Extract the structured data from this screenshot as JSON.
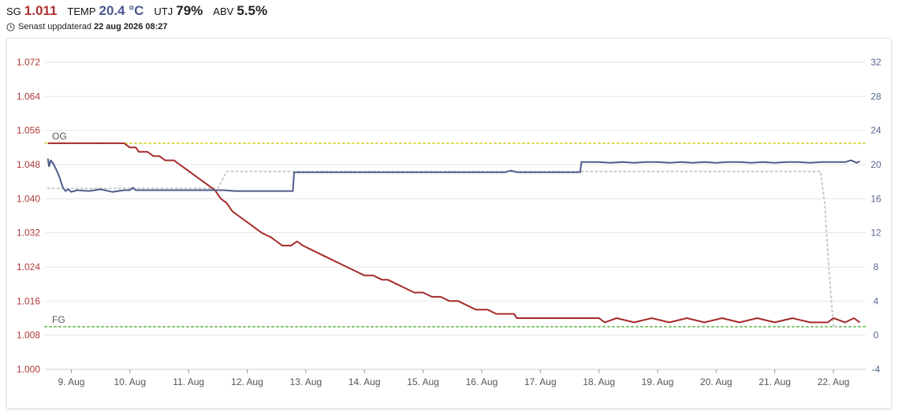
{
  "header": {
    "stats": [
      {
        "label": "SG",
        "value": "1.011",
        "color": "#b03030"
      },
      {
        "label": "TEMP",
        "value": "20.4 °C",
        "color": "#4a5890"
      },
      {
        "label": "UTJ",
        "value": "79%",
        "color": "#111111"
      },
      {
        "label": "ABV",
        "value": "5.5%",
        "color": "#111111"
      }
    ],
    "updated_label": "Senast uppdaterad",
    "updated_value": "22 aug 2026 08:27",
    "clock_icon": "clock-icon"
  },
  "chart_data": {
    "type": "line",
    "colors": {
      "sg": "#a52a2a",
      "temp": "#4f5b8c",
      "target_temp": "#c8c8c8",
      "og": "#d9d94a",
      "fg": "#7cc26a"
    },
    "x_ticks": [
      "9. Aug",
      "10. Aug",
      "11. Aug",
      "12. Aug",
      "13. Aug",
      "14. Aug",
      "15. Aug",
      "16. Aug",
      "17. Aug",
      "18. Aug",
      "19. Aug",
      "20. Aug",
      "21. Aug",
      "22. Aug"
    ],
    "xlim": [
      8.55,
      22.55
    ],
    "y_left": {
      "ticks": [
        "1.000",
        "1.008",
        "1.016",
        "1.024",
        "1.032",
        "1.040",
        "1.048",
        "1.056",
        "1.064",
        "1.072"
      ],
      "range": [
        1.0,
        1.072
      ]
    },
    "y_right": {
      "ticks": [
        "-4",
        "0",
        "4",
        "8",
        "12",
        "16",
        "20",
        "24",
        "28",
        "32"
      ],
      "range": [
        -4,
        32
      ]
    },
    "reference_lines": [
      {
        "label": "OG",
        "value": 1.053,
        "axis": "left"
      },
      {
        "label": "FG",
        "value": 1.01,
        "axis": "left"
      }
    ],
    "grid": true,
    "series": [
      {
        "key": "sg",
        "axis": "left",
        "points": [
          [
            8.6,
            1.053
          ],
          [
            9.9,
            1.053
          ],
          [
            10.0,
            1.052
          ],
          [
            10.1,
            1.052
          ],
          [
            10.15,
            1.051
          ],
          [
            10.3,
            1.051
          ],
          [
            10.4,
            1.05
          ],
          [
            10.5,
            1.05
          ],
          [
            10.6,
            1.049
          ],
          [
            10.75,
            1.049
          ],
          [
            10.85,
            1.048
          ],
          [
            10.95,
            1.047
          ],
          [
            11.05,
            1.046
          ],
          [
            11.15,
            1.045
          ],
          [
            11.25,
            1.044
          ],
          [
            11.35,
            1.043
          ],
          [
            11.45,
            1.042
          ],
          [
            11.55,
            1.04
          ],
          [
            11.65,
            1.039
          ],
          [
            11.75,
            1.037
          ],
          [
            11.85,
            1.036
          ],
          [
            11.95,
            1.035
          ],
          [
            12.05,
            1.034
          ],
          [
            12.15,
            1.033
          ],
          [
            12.25,
            1.032
          ],
          [
            12.4,
            1.031
          ],
          [
            12.5,
            1.03
          ],
          [
            12.6,
            1.029
          ],
          [
            12.75,
            1.029
          ],
          [
            12.85,
            1.03
          ],
          [
            12.95,
            1.029
          ],
          [
            13.1,
            1.028
          ],
          [
            13.25,
            1.027
          ],
          [
            13.4,
            1.026
          ],
          [
            13.55,
            1.025
          ],
          [
            13.7,
            1.024
          ],
          [
            13.85,
            1.023
          ],
          [
            14.0,
            1.022
          ],
          [
            14.15,
            1.022
          ],
          [
            14.3,
            1.021
          ],
          [
            14.4,
            1.021
          ],
          [
            14.55,
            1.02
          ],
          [
            14.7,
            1.019
          ],
          [
            14.85,
            1.018
          ],
          [
            15.0,
            1.018
          ],
          [
            15.15,
            1.017
          ],
          [
            15.3,
            1.017
          ],
          [
            15.45,
            1.016
          ],
          [
            15.6,
            1.016
          ],
          [
            15.75,
            1.015
          ],
          [
            15.9,
            1.014
          ],
          [
            16.1,
            1.014
          ],
          [
            16.25,
            1.013
          ],
          [
            16.4,
            1.013
          ],
          [
            16.55,
            1.013
          ],
          [
            16.6,
            1.012
          ],
          [
            16.75,
            1.012
          ],
          [
            16.9,
            1.012
          ],
          [
            17.0,
            1.012
          ],
          [
            17.2,
            1.012
          ],
          [
            17.5,
            1.012
          ],
          [
            17.75,
            1.012
          ],
          [
            18.0,
            1.012
          ],
          [
            18.1,
            1.011
          ],
          [
            18.3,
            1.012
          ],
          [
            18.6,
            1.011
          ],
          [
            18.9,
            1.012
          ],
          [
            19.2,
            1.011
          ],
          [
            19.5,
            1.012
          ],
          [
            19.8,
            1.011
          ],
          [
            20.1,
            1.012
          ],
          [
            20.4,
            1.011
          ],
          [
            20.7,
            1.012
          ],
          [
            21.0,
            1.011
          ],
          [
            21.3,
            1.012
          ],
          [
            21.6,
            1.011
          ],
          [
            21.9,
            1.011
          ],
          [
            22.0,
            1.012
          ],
          [
            22.2,
            1.011
          ],
          [
            22.35,
            1.012
          ],
          [
            22.45,
            1.011
          ]
        ]
      },
      {
        "key": "temp",
        "axis": "right",
        "points": [
          [
            8.6,
            20.7
          ],
          [
            8.62,
            19.8
          ],
          [
            8.65,
            20.5
          ],
          [
            8.7,
            20.0
          ],
          [
            8.75,
            19.3
          ],
          [
            8.8,
            18.5
          ],
          [
            8.85,
            17.4
          ],
          [
            8.9,
            16.9
          ],
          [
            8.95,
            17.1
          ],
          [
            9.0,
            16.8
          ],
          [
            9.1,
            17.0
          ],
          [
            9.3,
            16.9
          ],
          [
            9.5,
            17.1
          ],
          [
            9.7,
            16.8
          ],
          [
            9.9,
            17.0
          ],
          [
            10.0,
            17.0
          ],
          [
            10.05,
            17.3
          ],
          [
            10.1,
            17.0
          ],
          [
            10.4,
            17.0
          ],
          [
            10.6,
            17.0
          ],
          [
            10.8,
            17.0
          ],
          [
            11.0,
            17.0
          ],
          [
            11.2,
            17.0
          ],
          [
            11.4,
            17.0
          ],
          [
            11.6,
            17.0
          ],
          [
            11.8,
            16.9
          ],
          [
            12.0,
            16.9
          ],
          [
            12.2,
            16.9
          ],
          [
            12.4,
            16.9
          ],
          [
            12.6,
            16.9
          ],
          [
            12.78,
            16.9
          ],
          [
            12.8,
            19.1
          ],
          [
            13.0,
            19.1
          ],
          [
            13.4,
            19.1
          ],
          [
            13.8,
            19.1
          ],
          [
            14.2,
            19.1
          ],
          [
            14.6,
            19.1
          ],
          [
            15.0,
            19.1
          ],
          [
            15.4,
            19.1
          ],
          [
            15.8,
            19.1
          ],
          [
            16.2,
            19.1
          ],
          [
            16.4,
            19.1
          ],
          [
            16.5,
            19.3
          ],
          [
            16.6,
            19.1
          ],
          [
            16.9,
            19.1
          ],
          [
            17.2,
            19.1
          ],
          [
            17.5,
            19.1
          ],
          [
            17.68,
            19.1
          ],
          [
            17.7,
            20.3
          ],
          [
            18.0,
            20.3
          ],
          [
            18.2,
            20.2
          ],
          [
            18.4,
            20.3
          ],
          [
            18.6,
            20.2
          ],
          [
            18.8,
            20.3
          ],
          [
            19.0,
            20.3
          ],
          [
            19.2,
            20.2
          ],
          [
            19.4,
            20.3
          ],
          [
            19.6,
            20.2
          ],
          [
            19.8,
            20.3
          ],
          [
            20.0,
            20.2
          ],
          [
            20.2,
            20.3
          ],
          [
            20.4,
            20.3
          ],
          [
            20.6,
            20.2
          ],
          [
            20.8,
            20.3
          ],
          [
            21.0,
            20.2
          ],
          [
            21.2,
            20.3
          ],
          [
            21.4,
            20.3
          ],
          [
            21.6,
            20.2
          ],
          [
            21.8,
            20.3
          ],
          [
            22.0,
            20.3
          ],
          [
            22.2,
            20.3
          ],
          [
            22.3,
            20.5
          ],
          [
            22.4,
            20.2
          ],
          [
            22.45,
            20.4
          ]
        ]
      },
      {
        "key": "target_temp",
        "axis": "right",
        "dashed": true,
        "points": [
          [
            8.6,
            17.2
          ],
          [
            11.4,
            17.2
          ],
          [
            11.5,
            17.2
          ],
          [
            11.65,
            19.2
          ],
          [
            17.6,
            19.2
          ],
          [
            17.7,
            19.2
          ],
          [
            21.7,
            19.2
          ],
          [
            21.78,
            19.2
          ],
          [
            21.85,
            15.5
          ],
          [
            21.92,
            8.0
          ],
          [
            22.0,
            1.0
          ],
          [
            22.1,
            1.0
          ]
        ]
      }
    ]
  }
}
